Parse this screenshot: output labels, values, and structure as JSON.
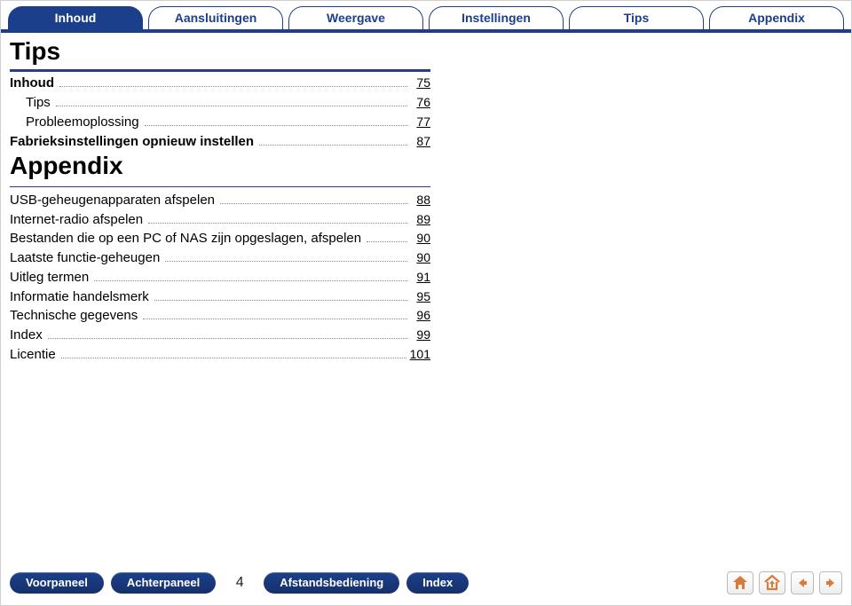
{
  "tabs": [
    {
      "label": "Inhoud",
      "active": true
    },
    {
      "label": "Aansluitingen",
      "active": false
    },
    {
      "label": "Weergave",
      "active": false
    },
    {
      "label": "Instellingen",
      "active": false
    },
    {
      "label": "Tips",
      "active": false
    },
    {
      "label": "Appendix",
      "active": false
    }
  ],
  "sections": [
    {
      "heading": "Tips",
      "items": [
        {
          "label": "Inhoud",
          "page": "75",
          "bold": true,
          "indent": 0
        },
        {
          "label": "Tips",
          "page": "76",
          "bold": false,
          "indent": 1
        },
        {
          "label": "Probleemoplossing",
          "page": "77",
          "bold": false,
          "indent": 1
        },
        {
          "label": "Fabrieksinstellingen opnieuw instellen",
          "page": "87",
          "bold": true,
          "indent": 0
        }
      ]
    },
    {
      "heading": "Appendix",
      "items": [
        {
          "label": "USB-geheugenapparaten afspelen",
          "page": "88",
          "bold": false,
          "indent": 0
        },
        {
          "label": "Internet-radio afspelen",
          "page": "89",
          "bold": false,
          "indent": 0
        },
        {
          "label": "Bestanden die op een PC of NAS zijn opgeslagen, afspelen",
          "page": "90",
          "bold": false,
          "indent": 0
        },
        {
          "label": "Laatste functie-geheugen",
          "page": "90",
          "bold": false,
          "indent": 0
        },
        {
          "label": "Uitleg termen",
          "page": "91",
          "bold": false,
          "indent": 0
        },
        {
          "label": "Informatie handelsmerk",
          "page": "95",
          "bold": false,
          "indent": 0
        },
        {
          "label": "Technische gegevens",
          "page": "96",
          "bold": false,
          "indent": 0
        },
        {
          "label": "Index",
          "page": "99",
          "bold": false,
          "indent": 0
        },
        {
          "label": "Licentie",
          "page": "101",
          "bold": false,
          "indent": 0
        }
      ]
    }
  ],
  "footer": {
    "pills_left": [
      "Voorpaneel",
      "Achterpaneel"
    ],
    "page_number": "4",
    "pills_right": [
      "Afstandsbediening",
      "Index"
    ]
  },
  "colors": {
    "navy": "#1b3f8b",
    "orange": "#d77a3a"
  }
}
